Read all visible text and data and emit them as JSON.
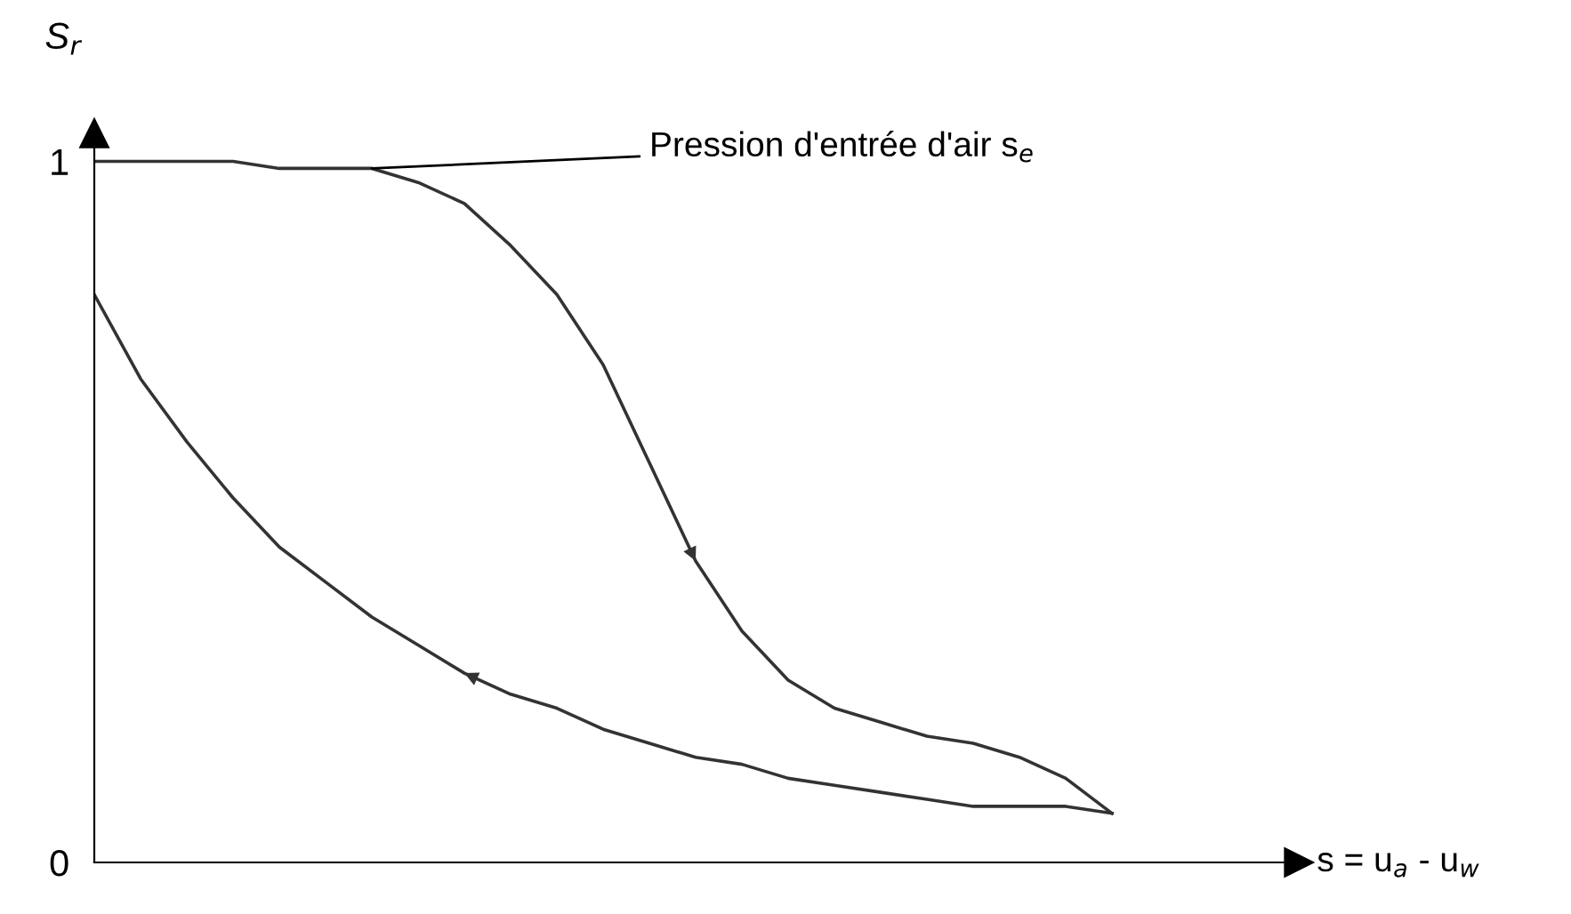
{
  "chart_data": {
    "type": "line",
    "ylabel": "S$_{r}$",
    "annotations": [
      "Pression d'entrée d'air s$_{e}$",
      "s = u$_{a}$ - u$_{w}$"
    ],
    "categories": [
      null,
      null,
      null,
      null,
      null,
      null,
      null,
      null,
      null,
      null,
      null,
      null,
      null,
      null,
      null,
      null,
      null,
      null,
      null,
      null,
      null,
      null,
      null
    ],
    "series": [
      {
        "color": "#333333",
        "values": [
          1.0,
          1.0,
          1.0,
          1.0,
          0.99,
          0.99,
          0.99,
          0.97,
          0.94,
          0.88,
          0.81,
          0.71,
          0.57,
          0.43,
          0.33,
          0.26,
          0.22,
          0.2,
          0.18,
          0.17,
          0.15,
          0.12,
          0.07
        ]
      },
      {
        "color": "#333333",
        "values": [
          0.81,
          0.69,
          0.6,
          0.52,
          0.45,
          0.4,
          0.35,
          0.31,
          0.27,
          0.24,
          0.22,
          0.19,
          0.17,
          0.15,
          0.14,
          0.12,
          0.11,
          0.1,
          0.09,
          0.08,
          0.08,
          0.08,
          0.07
        ]
      }
    ],
    "ylim": [
      0,
      1.04
    ],
    "yticks": [
      0,
      1
    ],
    "tick_labels": "y",
    "grid": false,
    "marker": "none",
    "line_style": "solid"
  }
}
